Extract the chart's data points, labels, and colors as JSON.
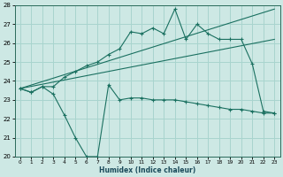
{
  "xlabel": "Humidex (Indice chaleur)",
  "xlim": [
    -0.5,
    23.5
  ],
  "ylim": [
    20,
    28
  ],
  "yticks": [
    20,
    21,
    22,
    23,
    24,
    25,
    26,
    27,
    28
  ],
  "xticks": [
    0,
    1,
    2,
    3,
    4,
    5,
    6,
    7,
    8,
    9,
    10,
    11,
    12,
    13,
    14,
    15,
    16,
    17,
    18,
    19,
    20,
    21,
    22,
    23
  ],
  "background_color": "#cde8e4",
  "line_color": "#1a7060",
  "grid_color": "#a8d4ce",
  "lines": [
    {
      "x": [
        0,
        1,
        2,
        3,
        4,
        5,
        6,
        7,
        8,
        9,
        10,
        11,
        12,
        13,
        14,
        15,
        16,
        17,
        18,
        19,
        20,
        21,
        22,
        23
      ],
      "y": [
        23.6,
        23.4,
        23.7,
        23.3,
        22.2,
        21.0,
        20.0,
        20.0,
        23.8,
        23.0,
        23.1,
        23.1,
        23.0,
        23.0,
        23.0,
        22.9,
        22.8,
        22.7,
        22.6,
        22.5,
        22.5,
        22.4,
        22.3,
        22.3
      ],
      "marker": true
    },
    {
      "x": [
        0,
        1,
        2,
        3,
        4,
        5,
        6,
        7,
        8,
        9,
        10,
        11,
        12,
        13,
        14,
        15,
        16,
        17,
        18,
        19,
        20,
        21,
        22,
        23
      ],
      "y": [
        23.6,
        23.4,
        23.7,
        23.7,
        24.2,
        24.5,
        24.8,
        25.0,
        25.4,
        25.7,
        26.6,
        26.5,
        26.8,
        26.5,
        27.8,
        26.2,
        27.0,
        26.5,
        26.2,
        26.2,
        26.2,
        24.9,
        22.4,
        22.3
      ],
      "marker": true
    },
    {
      "x": [
        0,
        23
      ],
      "y": [
        23.6,
        26.2
      ],
      "marker": false
    },
    {
      "x": [
        0,
        23
      ],
      "y": [
        23.6,
        27.8
      ],
      "marker": false
    }
  ]
}
